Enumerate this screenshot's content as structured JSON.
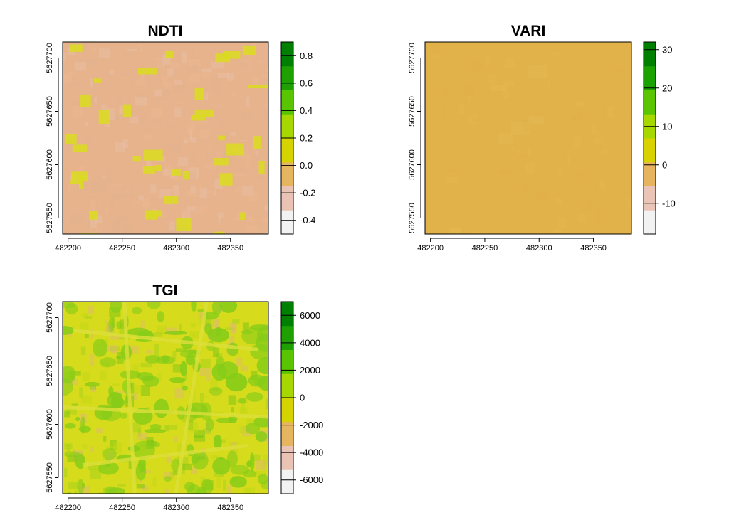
{
  "chart_data": [
    {
      "type": "heatmap",
      "title": "NDTI",
      "x_ticks": [
        482200,
        482250,
        482300,
        482350
      ],
      "y_ticks": [
        5627550,
        5627600,
        5627650,
        5627700
      ],
      "xlim": [
        482195,
        482385
      ],
      "ylim": [
        5627535,
        5627715
      ],
      "legend": {
        "range": [
          -0.5,
          0.9
        ],
        "ticks": [
          -0.4,
          -0.2,
          0.0,
          0.2,
          0.4,
          0.6,
          0.8
        ],
        "tick_labels": [
          "-0.4",
          "-0.2",
          "0.0",
          "0.2",
          "0.4",
          "0.6",
          "0.8"
        ],
        "colors": [
          "#f2f2f2",
          "#ebc3b5",
          "#e6b560",
          "#d5d400",
          "#a7d700",
          "#59c400",
          "#1ea100",
          "#007f00"
        ]
      },
      "raster": {
        "base_color": "#e6b38c",
        "patch_color": "#d9dc1e",
        "speck_colors": [
          "#e8c0a8",
          "#eab990",
          "#e2b48e"
        ]
      }
    },
    {
      "type": "heatmap",
      "title": "VARI",
      "x_ticks": [
        482200,
        482250,
        482300,
        482350
      ],
      "y_ticks": [
        5627550,
        5627600,
        5627650,
        5627700
      ],
      "xlim": [
        482195,
        482385
      ],
      "ylim": [
        5627535,
        5627715
      ],
      "legend": {
        "range": [
          -18,
          32
        ],
        "ticks": [
          -10,
          0,
          10,
          20,
          30
        ],
        "tick_labels": [
          "-10",
          "0",
          "10",
          "20",
          "30"
        ],
        "colors": [
          "#f2f2f2",
          "#ebc4b8",
          "#e6b35e",
          "#d8d300",
          "#a6d800",
          "#5ac500",
          "#1ba200",
          "#007f00"
        ]
      },
      "raster": {
        "base_color": "#e2b24a",
        "patch_color": "#e6bb55",
        "speck_colors": [
          "#e4b54e",
          "#dfae46"
        ]
      }
    },
    {
      "type": "heatmap",
      "title": "TGI",
      "x_ticks": [
        482200,
        482250,
        482300,
        482350
      ],
      "y_ticks": [
        5627550,
        5627600,
        5627650,
        5627700
      ],
      "xlim": [
        482195,
        482385
      ],
      "ylim": [
        5627535,
        5627715
      ],
      "legend": {
        "range": [
          -7000,
          7000
        ],
        "ticks": [
          -6000,
          -4000,
          -2000,
          0,
          2000,
          4000,
          6000
        ],
        "tick_labels": [
          "-6000",
          "-4000",
          "-2000",
          "0",
          "2000",
          "4000",
          "6000"
        ],
        "colors": [
          "#f2f2f2",
          "#ebc3b5",
          "#e6b560",
          "#d5d400",
          "#a7d700",
          "#59c400",
          "#1ea100",
          "#007f00"
        ]
      },
      "raster": {
        "base_color": "#d6db1c",
        "patch_color": "#86cc18",
        "speck_colors": [
          "#e0b67a",
          "#c2d616",
          "#9fd11a",
          "#6cc015"
        ]
      }
    }
  ]
}
